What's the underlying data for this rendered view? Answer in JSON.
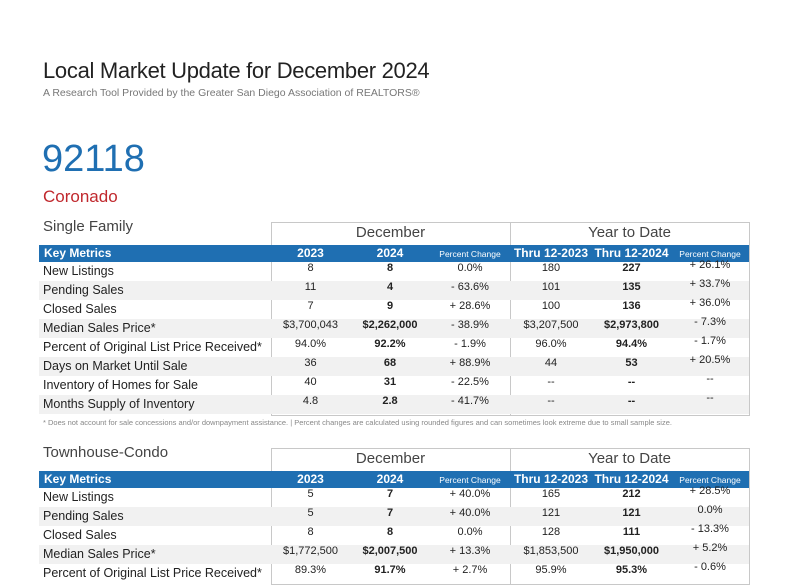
{
  "header": {
    "title": "Local Market Update for December 2024",
    "subtitle": "A Research Tool Provided by the Greater San Diego Association of REALTORS®"
  },
  "area": {
    "zip": "92118",
    "city": "Coronado"
  },
  "tables": [
    {
      "title": "Single Family",
      "groups": [
        "December",
        "Year to Date"
      ],
      "columns": [
        "Key Metrics",
        "2023",
        "2024",
        "Percent Change",
        "Thru 12-2023",
        "Thru 12-2024",
        "Percent Change"
      ],
      "rows": [
        {
          "label": "New Listings",
          "values": [
            "8",
            "8",
            "0.0%",
            "180",
            "227",
            "+ 26.1%"
          ]
        },
        {
          "label": "Pending Sales",
          "values": [
            "11",
            "4",
            "- 63.6%",
            "101",
            "135",
            "+ 33.7%"
          ]
        },
        {
          "label": "Closed Sales",
          "values": [
            "7",
            "9",
            "+ 28.6%",
            "100",
            "136",
            "+ 36.0%"
          ]
        },
        {
          "label": "Median Sales Price*",
          "values": [
            "$3,700,043",
            "$2,262,000",
            "- 38.9%",
            "$3,207,500",
            "$2,973,800",
            "- 7.3%"
          ]
        },
        {
          "label": "Percent of Original List Price Received*",
          "values": [
            "94.0%",
            "92.2%",
            "- 1.9%",
            "96.0%",
            "94.4%",
            "- 1.7%"
          ]
        },
        {
          "label": "Days on Market Until Sale",
          "values": [
            "36",
            "68",
            "+ 88.9%",
            "44",
            "53",
            "+ 20.5%"
          ]
        },
        {
          "label": "Inventory of Homes for Sale",
          "values": [
            "40",
            "31",
            "- 22.5%",
            "--",
            "--",
            "--"
          ]
        },
        {
          "label": "Months Supply of Inventory",
          "values": [
            "4.8",
            "2.8",
            "- 41.7%",
            "--",
            "--",
            "--"
          ]
        }
      ],
      "footnote": "* Does not account for sale concessions and/or downpayment assistance. | Percent changes are calculated using rounded figures and can sometimes look extreme due to small sample size."
    },
    {
      "title": "Townhouse-Condo",
      "groups": [
        "December",
        "Year to Date"
      ],
      "columns": [
        "Key Metrics",
        "2023",
        "2024",
        "Percent Change",
        "Thru 12-2023",
        "Thru 12-2024",
        "Percent Change"
      ],
      "rows": [
        {
          "label": "New Listings",
          "values": [
            "5",
            "7",
            "+ 40.0%",
            "165",
            "212",
            "+ 28.5%"
          ]
        },
        {
          "label": "Pending Sales",
          "values": [
            "5",
            "7",
            "+ 40.0%",
            "121",
            "121",
            "0.0%"
          ]
        },
        {
          "label": "Closed Sales",
          "values": [
            "8",
            "8",
            "0.0%",
            "128",
            "111",
            "- 13.3%"
          ]
        },
        {
          "label": "Median Sales Price*",
          "values": [
            "$1,772,500",
            "$2,007,500",
            "+ 13.3%",
            "$1,853,500",
            "$1,950,000",
            "+ 5.2%"
          ]
        },
        {
          "label": "Percent of Original List Price Received*",
          "values": [
            "89.3%",
            "91.7%",
            "+ 2.7%",
            "95.9%",
            "95.3%",
            "- 0.6%"
          ]
        }
      ]
    }
  ]
}
